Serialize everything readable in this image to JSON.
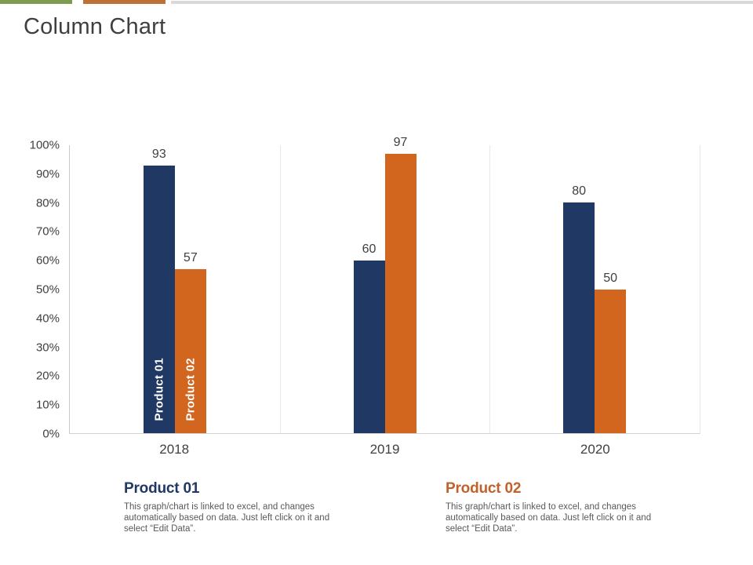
{
  "slide": {
    "title": "Column Chart"
  },
  "top_strip": {
    "green": "#7E9B52",
    "orange": "#BE7137",
    "gray": "#D9D9D9"
  },
  "chart_data": {
    "type": "bar",
    "categories": [
      "2018",
      "2019",
      "2020"
    ],
    "series": [
      {
        "name": "Product 01",
        "color": "#1F3864",
        "values": [
          93,
          60,
          80
        ]
      },
      {
        "name": "Product 02",
        "color": "#D2661F",
        "values": [
          57,
          97,
          50
        ]
      }
    ],
    "y_ticks": [
      "0%",
      "10%",
      "20%",
      "30%",
      "40%",
      "50%",
      "60%",
      "70%",
      "80%",
      "90%",
      "100%"
    ],
    "ylim": [
      0,
      100
    ],
    "value_labels": true,
    "series_labels_in_first_group": true,
    "legend_position": "below",
    "grid": "vertical-category-separators"
  },
  "legend": {
    "items": [
      {
        "title": "Product 01",
        "color": "#1F3864",
        "description": "This graph/chart is linked to excel, and changes automatically based on data. Just left click on it and select “Edit Data”."
      },
      {
        "title": "Product 02",
        "color": "#C0622B",
        "description": "This graph/chart is linked to excel, and changes automatically based on data. Just left click on it and select “Edit Data”."
      }
    ]
  }
}
